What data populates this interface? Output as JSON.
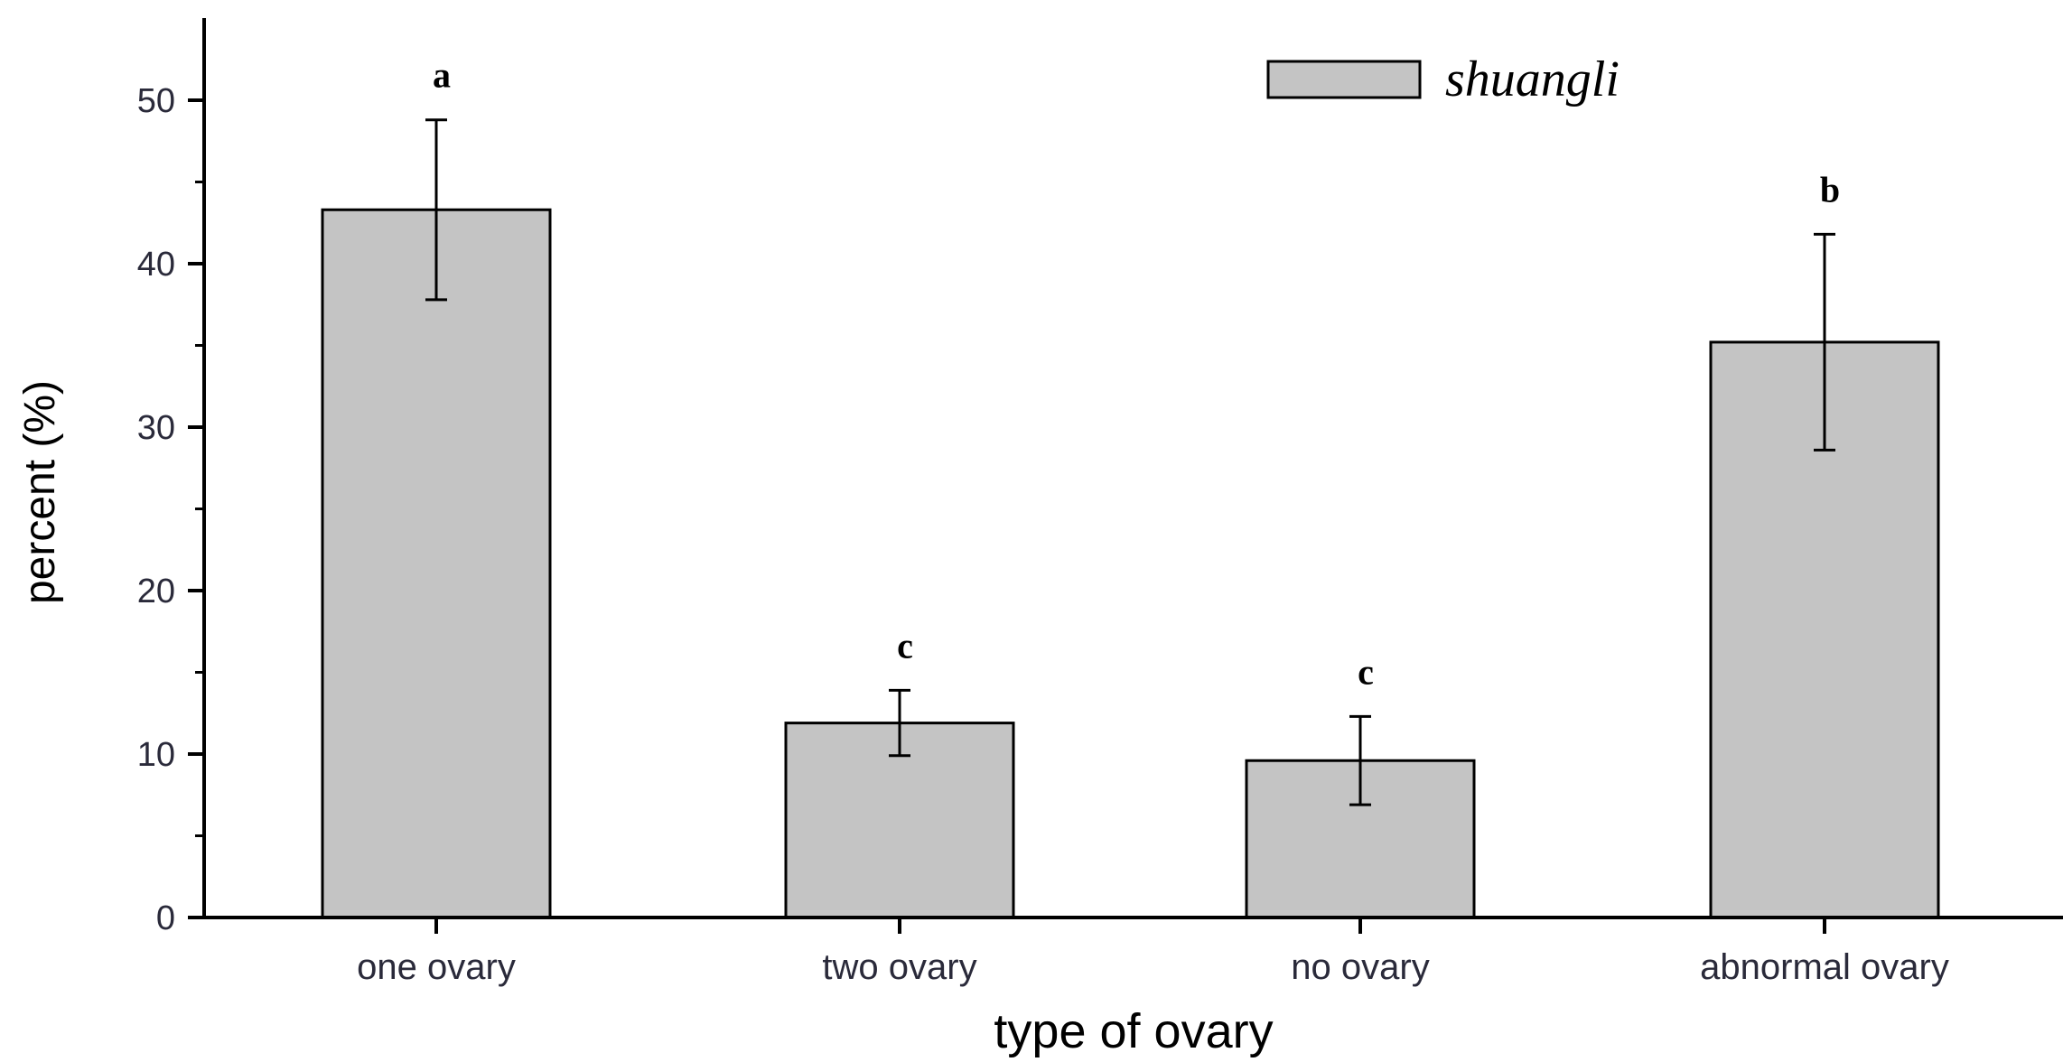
{
  "chart_data": {
    "type": "bar",
    "title": "",
    "xlabel": "type of ovary",
    "ylabel": "percent (%)",
    "ylim": [
      0,
      55
    ],
    "yticks": [
      0,
      10,
      20,
      30,
      40,
      50
    ],
    "categories": [
      "one ovary",
      "two ovary",
      "no ovary",
      "abnormal ovary"
    ],
    "series": [
      {
        "name": "shuangli",
        "values": [
          43.3,
          11.9,
          9.6,
          35.2
        ],
        "errors": [
          5.5,
          2.0,
          2.7,
          6.6
        ],
        "labels": [
          "a",
          "c",
          "c",
          "b"
        ],
        "color": "#c4c4c4"
      }
    ],
    "legend": "top-right",
    "grid": false
  }
}
